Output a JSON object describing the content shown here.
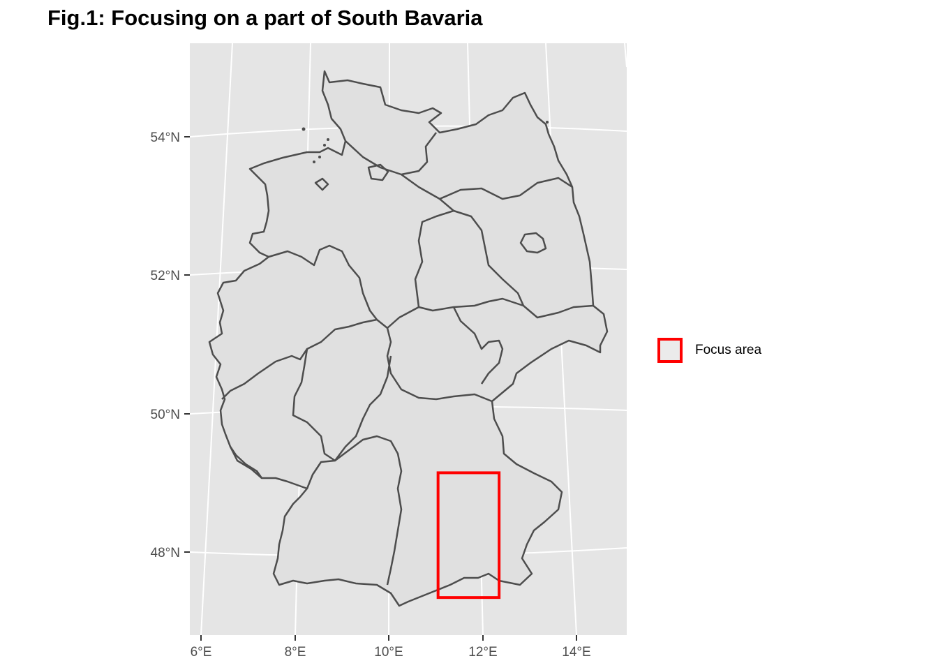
{
  "title": "Fig.1: Focusing on a part of South Bavaria",
  "map": {
    "region": "Germany (federal state boundaries)",
    "panel_background": "#e5e5e5",
    "land_fill": "#e0e0e0",
    "border_color": "#4d4d4d",
    "lat_ticks": [
      "54°N",
      "52°N",
      "50°N",
      "48°N"
    ],
    "lon_ticks": [
      "6°E",
      "8°E",
      "10°E",
      "12°E",
      "14°E"
    ]
  },
  "focus_area": {
    "lon_min": 11.05,
    "lon_max": 12.35,
    "lat_min": 47.35,
    "lat_max": 49.15,
    "color": "#ff0000"
  },
  "legend": {
    "label": "Focus area"
  }
}
